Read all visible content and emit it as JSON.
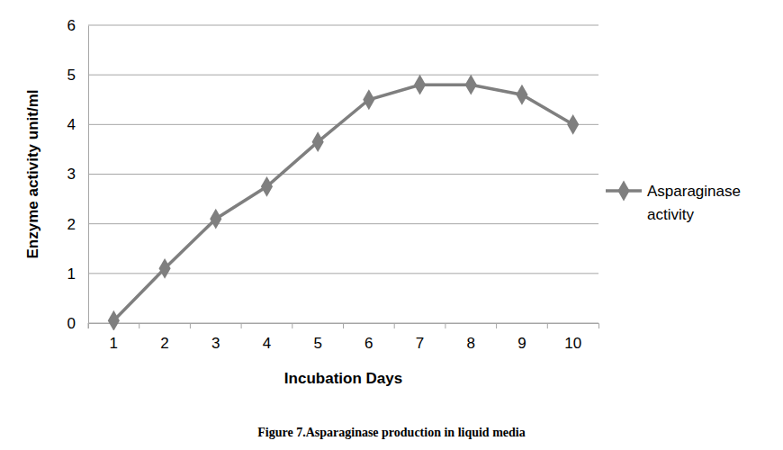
{
  "chart_data": {
    "type": "line",
    "title": "Figure 7.Asparaginase production in liquid media",
    "x_label": "Incubation Days",
    "y_label": "Enzyme activity unit/ml",
    "categories": [
      "1",
      "2",
      "3",
      "4",
      "5",
      "6",
      "7",
      "8",
      "9",
      "10"
    ],
    "series": [
      {
        "name": "Asparaginase activity",
        "color": "#7f7f7f",
        "marker": "diamond",
        "values": [
          0.05,
          1.1,
          2.1,
          2.75,
          3.65,
          4.5,
          4.8,
          4.8,
          4.6,
          4.0
        ]
      }
    ],
    "ylim": [
      0,
      6
    ],
    "yticks": [
      0,
      1,
      2,
      3,
      4,
      5,
      6
    ],
    "grid": true,
    "legend": "right"
  }
}
